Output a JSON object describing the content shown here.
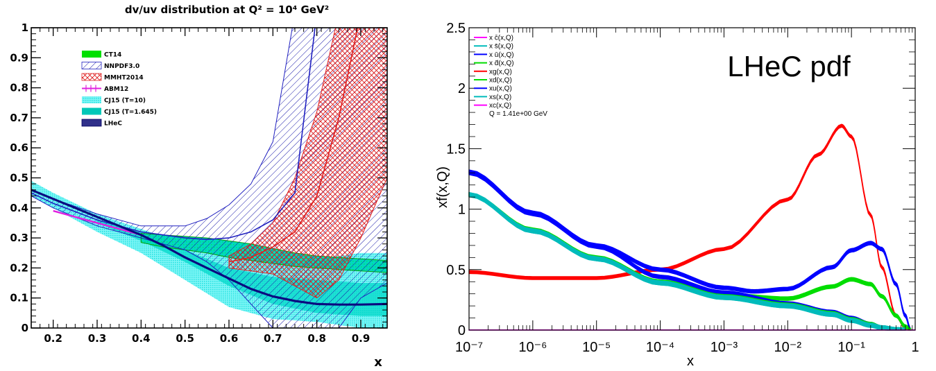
{
  "chart_data": [
    {
      "type": "line",
      "title": "dv/uv distribution at Q² = 10⁴ GeV²",
      "xlabel": "x",
      "ylabel": "",
      "xlim": [
        0.15,
        0.96
      ],
      "ylim": [
        0,
        1
      ],
      "xticks": [
        "0.2",
        "0.3",
        "0.4",
        "0.5",
        "0.6",
        "0.7",
        "0.8",
        "0.9"
      ],
      "yticks": [
        "0",
        "0.1",
        "0.2",
        "0.3",
        "0.4",
        "0.5",
        "0.6",
        "0.7",
        "0.8",
        "0.9",
        "1"
      ],
      "legend_position": "top-left",
      "legend": [
        "CT14",
        "NNPDF3.0",
        "MMHT2014",
        "ABM12",
        "CJ15 (T=10)",
        "CJ15 (T=1.645)",
        "LHeC"
      ],
      "series": [
        {
          "name": "CT14",
          "color": "#00e000",
          "x": [
            0.4,
            0.45,
            0.5,
            0.55,
            0.6,
            0.65,
            0.7,
            0.75,
            0.8,
            0.85,
            0.9,
            0.96
          ],
          "upper": [
            0.315,
            0.31,
            0.305,
            0.3,
            0.29,
            0.28,
            0.265,
            0.25,
            0.24,
            0.235,
            0.23,
            0.225
          ],
          "lower": [
            0.285,
            0.27,
            0.26,
            0.25,
            0.235,
            0.225,
            0.215,
            0.205,
            0.2,
            0.195,
            0.19,
            0.185
          ]
        },
        {
          "name": "NNPDF3.0",
          "color": "#2020c0",
          "x": [
            0.15,
            0.2,
            0.3,
            0.4,
            0.5,
            0.55,
            0.6,
            0.65,
            0.7,
            0.75,
            0.8,
            0.85,
            0.9,
            0.96
          ],
          "upper": [
            0.46,
            0.43,
            0.38,
            0.34,
            0.34,
            0.365,
            0.41,
            0.48,
            0.62,
            1.05,
            1.05,
            1.05,
            1.05,
            1.05
          ],
          "lower": [
            0.44,
            0.4,
            0.34,
            0.3,
            0.26,
            0.22,
            0.16,
            0.08,
            0.0,
            0.0,
            0.0,
            0.0,
            0.1,
            0.15
          ],
          "central": [
            0.45,
            0.415,
            0.36,
            0.32,
            0.3,
            0.295,
            0.3,
            0.32,
            0.36,
            0.45,
            1.05,
            1.05,
            1.05,
            1.05
          ]
        },
        {
          "name": "MMHT2014",
          "color": "#e02020",
          "x": [
            0.6,
            0.65,
            0.7,
            0.75,
            0.8,
            0.85,
            0.9,
            0.96
          ],
          "upper": [
            0.24,
            0.28,
            0.35,
            0.5,
            0.72,
            1.05,
            1.05,
            1.05
          ],
          "lower": [
            0.2,
            0.19,
            0.18,
            0.14,
            0.1,
            0.16,
            0.3,
            0.5
          ],
          "central": [
            0.22,
            0.235,
            0.27,
            0.32,
            0.44,
            0.7,
            1.05,
            1.05
          ]
        },
        {
          "name": "ABM12",
          "color": "#e020e0",
          "x": [
            0.2,
            0.25,
            0.3,
            0.35,
            0.4
          ],
          "values": [
            0.39,
            0.37,
            0.35,
            0.33,
            0.31
          ]
        },
        {
          "name": "CJ15 (T=10)",
          "color": "#40f0f0",
          "x": [
            0.15,
            0.2,
            0.3,
            0.4,
            0.5,
            0.6,
            0.7,
            0.8,
            0.9,
            0.96
          ],
          "upper": [
            0.49,
            0.45,
            0.38,
            0.33,
            0.28,
            0.24,
            0.22,
            0.23,
            0.25,
            0.25
          ],
          "lower": [
            0.44,
            0.4,
            0.32,
            0.25,
            0.16,
            0.07,
            0.03,
            0.02,
            0.0,
            0.0
          ]
        },
        {
          "name": "CJ15 (T=1.645)",
          "color": "#00c8b8",
          "x": [
            0.3,
            0.4,
            0.5,
            0.6,
            0.7,
            0.8,
            0.9,
            0.96
          ],
          "upper": [
            0.36,
            0.32,
            0.26,
            0.2,
            0.17,
            0.16,
            0.15,
            0.15
          ],
          "lower": [
            0.35,
            0.29,
            0.22,
            0.14,
            0.08,
            0.05,
            0.04,
            0.04
          ]
        },
        {
          "name": "LHeC",
          "color": "#0a0a80",
          "x": [
            0.15,
            0.2,
            0.25,
            0.3,
            0.35,
            0.4,
            0.45,
            0.5,
            0.55,
            0.6,
            0.65,
            0.7,
            0.75,
            0.8,
            0.85,
            0.9,
            0.96
          ],
          "values": [
            0.46,
            0.43,
            0.4,
            0.37,
            0.34,
            0.31,
            0.275,
            0.235,
            0.2,
            0.165,
            0.13,
            0.105,
            0.09,
            0.08,
            0.078,
            0.078,
            0.08
          ]
        }
      ]
    },
    {
      "type": "line",
      "title": "",
      "annotation": "LHeC pdf",
      "xlabel": "x",
      "ylabel": "xf(x,Q)",
      "xscale": "log",
      "xlim": [
        1e-07,
        1
      ],
      "ylim": [
        0,
        2.5
      ],
      "xticks": [
        "10⁻⁷",
        "10⁻⁶",
        "10⁻⁵",
        "10⁻⁴",
        "10⁻³",
        "10⁻²",
        "10⁻¹",
        "1"
      ],
      "yticks": [
        "0",
        "0.5",
        "1",
        "1.5",
        "2",
        "2.5"
      ],
      "legend_position": "top-left",
      "legend_note": "Q = 1.41e+00 GeV",
      "legend": [
        "x c̄(x,Q)",
        "x s̄(x,Q)",
        "x ū(x,Q)",
        "x d̄(x,Q)",
        "xg(x,Q)",
        "xd(x,Q)",
        "xu(x,Q)",
        "xs(x,Q)",
        "xc(x,Q)"
      ],
      "series": [
        {
          "name": "xg(x,Q)",
          "color": "#ff0000",
          "x": [
            1e-07,
            1e-06,
            1e-05,
            0.0001,
            0.001,
            0.01,
            0.03,
            0.07,
            0.1,
            0.2,
            0.3,
            0.5,
            0.7,
            0.85
          ],
          "values": [
            0.48,
            0.43,
            0.43,
            0.5,
            0.67,
            1.08,
            1.45,
            1.69,
            1.6,
            0.95,
            0.52,
            0.12,
            0.02,
            0.0
          ],
          "band": 0.025
        },
        {
          "name": "xu(x,Q)",
          "color": "#0000ff",
          "x": [
            1e-07,
            1e-06,
            1e-05,
            0.0001,
            0.001,
            0.003,
            0.01,
            0.05,
            0.1,
            0.2,
            0.3,
            0.5,
            0.7,
            0.85
          ],
          "values": [
            1.31,
            0.97,
            0.7,
            0.5,
            0.35,
            0.32,
            0.34,
            0.52,
            0.66,
            0.72,
            0.67,
            0.38,
            0.12,
            0.0
          ],
          "band": 0.03
        },
        {
          "name": "xd(x,Q)",
          "color": "#00dd00",
          "x": [
            1e-07,
            1e-06,
            1e-05,
            0.0001,
            0.001,
            0.01,
            0.05,
            0.1,
            0.2,
            0.3,
            0.5,
            0.7,
            0.85
          ],
          "values": [
            1.12,
            0.82,
            0.59,
            0.4,
            0.29,
            0.26,
            0.36,
            0.42,
            0.38,
            0.28,
            0.12,
            0.03,
            0.0
          ],
          "band": 0.03
        },
        {
          "name": "xs(x,Q)",
          "color": "#00bbbb",
          "x": [
            1e-07,
            1e-06,
            1e-05,
            0.0001,
            0.001,
            0.01,
            0.05,
            0.1,
            0.2,
            0.3,
            0.5,
            0.7
          ],
          "values": [
            1.12,
            0.82,
            0.59,
            0.39,
            0.27,
            0.2,
            0.13,
            0.08,
            0.04,
            0.02,
            0.005,
            0.0
          ],
          "band": 0.035
        },
        {
          "name": "x ū(x,Q)",
          "color": "#0000ff",
          "x": [
            1e-07,
            1e-06,
            1e-05,
            0.0001,
            0.001,
            0.01,
            0.05,
            0.1,
            0.2,
            0.3,
            0.5,
            0.7
          ],
          "values": [
            1.3,
            0.96,
            0.69,
            0.44,
            0.31,
            0.22,
            0.15,
            0.1,
            0.05,
            0.02,
            0.005,
            0.0
          ],
          "band": 0.03
        },
        {
          "name": "x d̄(x,Q)",
          "color": "#00dd00",
          "x": [
            1e-07,
            1e-06,
            1e-05,
            0.0001,
            0.001,
            0.01,
            0.05,
            0.1,
            0.2,
            0.3,
            0.5,
            0.7
          ],
          "values": [
            1.12,
            0.83,
            0.6,
            0.4,
            0.28,
            0.21,
            0.14,
            0.09,
            0.05,
            0.02,
            0.005,
            0.0
          ],
          "band": 0.03
        },
        {
          "name": "x s̄(x,Q)",
          "color": "#00bbbb",
          "x": [
            1e-07,
            1e-06,
            1e-05,
            0.0001,
            0.001,
            0.01,
            0.05,
            0.1,
            0.2,
            0.3,
            0.5,
            0.7
          ],
          "values": [
            1.12,
            0.82,
            0.59,
            0.39,
            0.27,
            0.2,
            0.13,
            0.08,
            0.04,
            0.02,
            0.005,
            0.0
          ],
          "band": 0.035
        },
        {
          "name": "xc(x,Q)",
          "color": "#ff00ff",
          "x": [
            1e-07,
            0.001,
            1
          ],
          "values": [
            0.0,
            0.0,
            0.0
          ],
          "band": 0.004
        },
        {
          "name": "x c̄(x,Q)",
          "color": "#ff00ff",
          "x": [
            1e-07,
            0.001,
            1
          ],
          "values": [
            0.0,
            0.0,
            0.0
          ],
          "band": 0.004
        }
      ]
    }
  ]
}
